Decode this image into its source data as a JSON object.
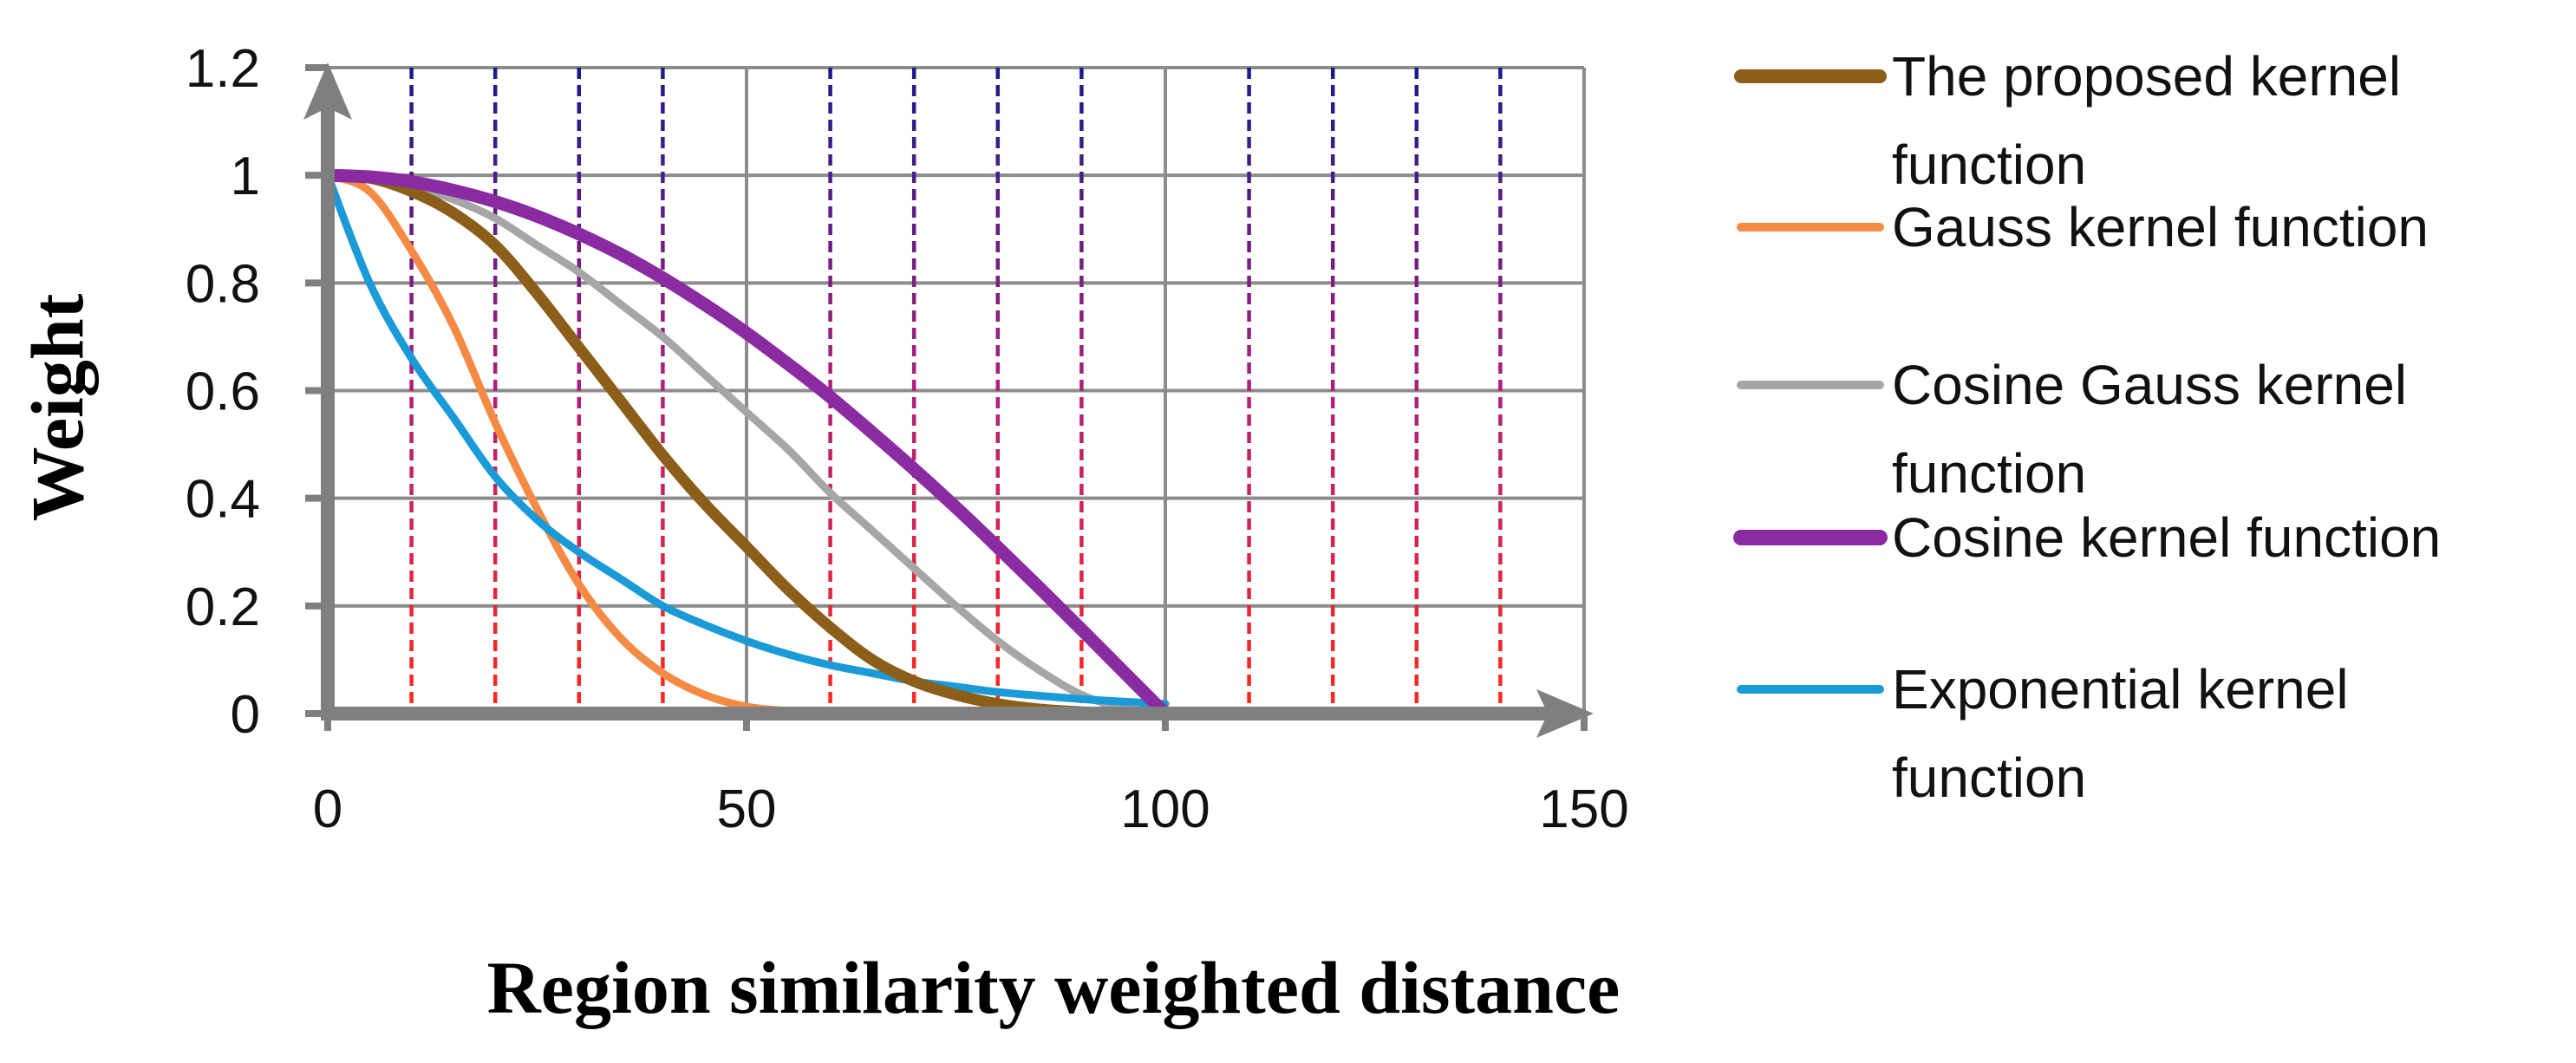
{
  "chart_data": {
    "type": "line",
    "title": "",
    "xlabel": "Region similarity weighted distance",
    "ylabel": "Weight",
    "xlim": [
      0,
      150
    ],
    "ylim": [
      0,
      1.2
    ],
    "x_ticks": [
      "0",
      "50",
      "100",
      "150"
    ],
    "y_ticks": [
      "0",
      "0.2",
      "0.4",
      "0.6",
      "0.8",
      "1",
      "1.2"
    ],
    "grid": true,
    "dashed_markers_x": [
      10,
      20,
      30,
      40,
      60,
      70,
      80,
      90,
      110,
      120,
      130,
      140
    ],
    "legend_position": "right",
    "x": [
      0,
      5,
      10,
      15,
      20,
      25,
      30,
      35,
      40,
      45,
      50,
      55,
      60,
      65,
      70,
      75,
      80,
      85,
      90,
      95,
      100
    ],
    "series": [
      {
        "name": "The proposed kernel function",
        "lines": [
          "The proposed kernel",
          "function"
        ],
        "color": "#8B5E1A",
        "values": [
          1.0,
          0.995,
          0.97,
          0.93,
          0.87,
          0.78,
          0.68,
          0.58,
          0.48,
          0.39,
          0.31,
          0.23,
          0.16,
          0.1,
          0.06,
          0.035,
          0.018,
          0.008,
          0.003,
          0.001,
          0.0
        ]
      },
      {
        "name": "Gauss kernel function",
        "lines": [
          "Gauss kernel function"
        ],
        "color": "#F58A44",
        "values": [
          1.0,
          0.97,
          0.86,
          0.72,
          0.54,
          0.38,
          0.24,
          0.14,
          0.075,
          0.035,
          0.013,
          0.005,
          0.002,
          0.001,
          0.0,
          0.0,
          0.0,
          0.0,
          0.0,
          0.0,
          0.0
        ]
      },
      {
        "name": "Cosine Gauss kernel function",
        "lines": [
          "Cosine Gauss kernel",
          "function"
        ],
        "color": "#A6A6A6",
        "values": [
          1.0,
          0.995,
          0.98,
          0.955,
          0.92,
          0.87,
          0.82,
          0.76,
          0.7,
          0.63,
          0.56,
          0.49,
          0.41,
          0.34,
          0.27,
          0.2,
          0.135,
          0.08,
          0.035,
          0.01,
          0.0
        ]
      },
      {
        "name": "Cosine kernel function",
        "lines": [
          "Cosine kernel function"
        ],
        "color": "#8A2BA2",
        "values": [
          1.0,
          0.997,
          0.988,
          0.972,
          0.951,
          0.924,
          0.891,
          0.853,
          0.809,
          0.76,
          0.707,
          0.649,
          0.588,
          0.522,
          0.454,
          0.383,
          0.309,
          0.233,
          0.156,
          0.078,
          0.0
        ]
      },
      {
        "name": "Exponential kernel function",
        "lines": [
          "Exponential kernel",
          "function"
        ],
        "color": "#1A9AD6",
        "values": [
          1.0,
          0.8,
          0.66,
          0.55,
          0.44,
          0.36,
          0.3,
          0.25,
          0.2,
          0.165,
          0.135,
          0.11,
          0.09,
          0.075,
          0.06,
          0.05,
          0.04,
          0.033,
          0.027,
          0.022,
          0.018
        ]
      }
    ]
  }
}
